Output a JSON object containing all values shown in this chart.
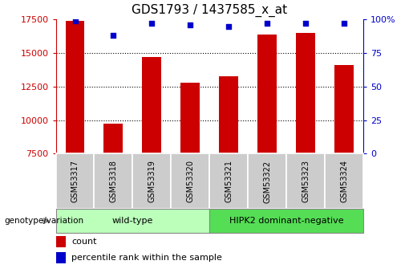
{
  "title": "GDS1793 / 1437585_x_at",
  "samples": [
    "GSM53317",
    "GSM53318",
    "GSM53319",
    "GSM53320",
    "GSM53321",
    "GSM53322",
    "GSM53323",
    "GSM53324"
  ],
  "counts": [
    17400,
    9750,
    14700,
    12800,
    13250,
    16400,
    16500,
    14100
  ],
  "percentile_ranks": [
    99,
    88,
    97,
    96,
    95,
    97,
    97,
    97
  ],
  "ymin": 7500,
  "ymax": 17500,
  "yticks": [
    7500,
    10000,
    12500,
    15000,
    17500
  ],
  "y2min": 0,
  "y2max": 100,
  "y2ticks": [
    0,
    25,
    50,
    75,
    100
  ],
  "bar_color": "#cc0000",
  "dot_color": "#0000cc",
  "group1_label": "wild-type",
  "group2_label": "HIPK2 dominant-negative",
  "group1_color": "#bbffbb",
  "group2_color": "#55dd55",
  "group1_indices": [
    0,
    1,
    2,
    3
  ],
  "group2_indices": [
    4,
    5,
    6,
    7
  ],
  "xlabel_genotype": "genotype/variation",
  "legend_count": "count",
  "legend_percentile": "percentile rank within the sample",
  "bar_width": 0.5,
  "title_fontsize": 11,
  "tick_fontsize": 8,
  "sample_box_color": "#cccccc",
  "grid_color": "#000000",
  "grid_linestyle": "dotted",
  "grid_linewidth": 0.8
}
